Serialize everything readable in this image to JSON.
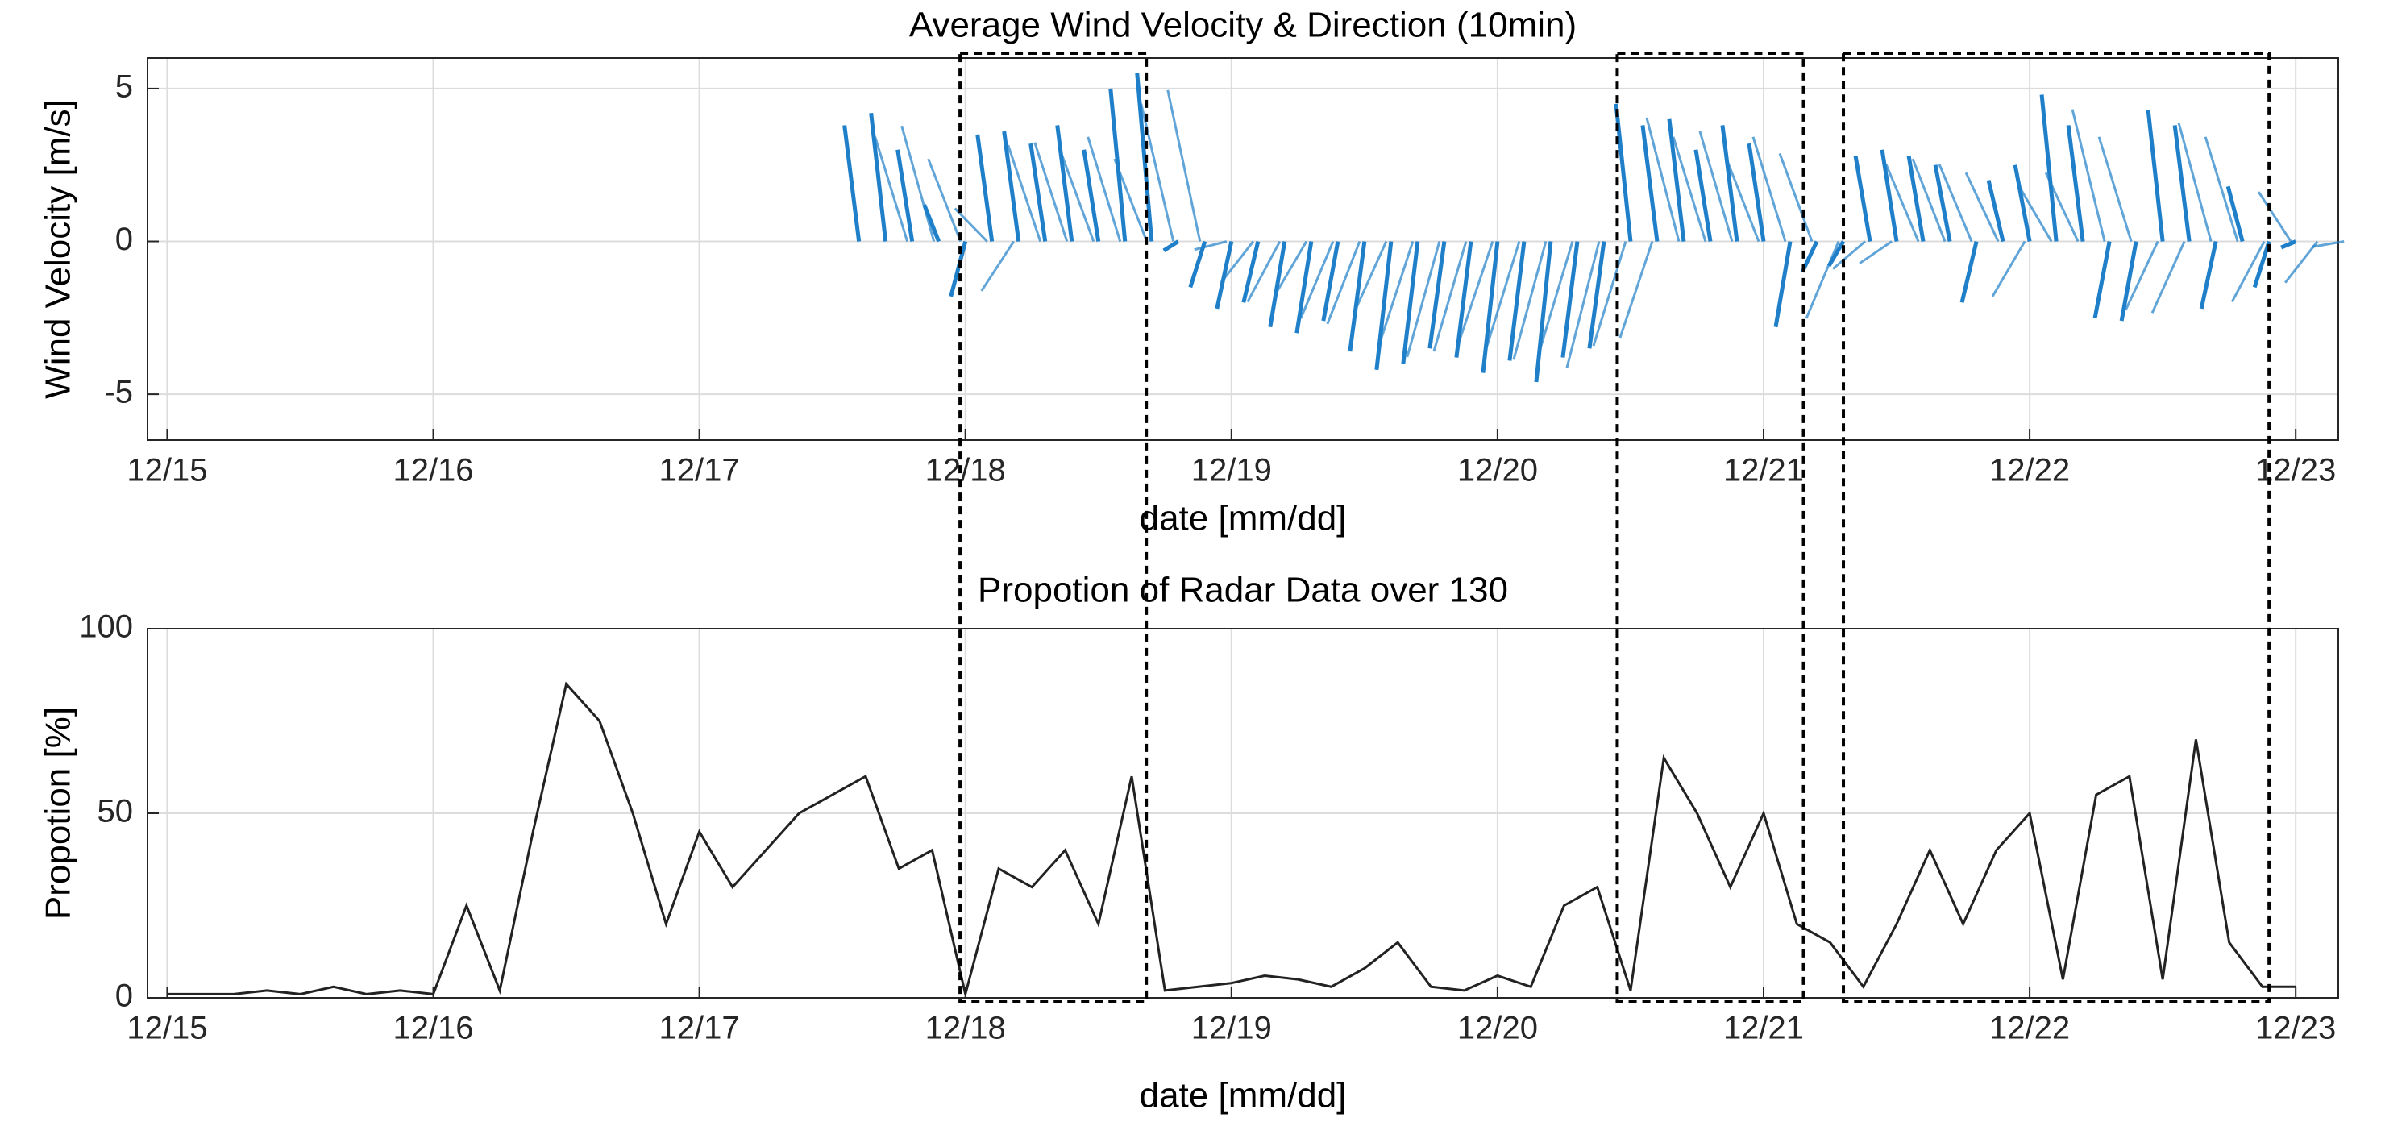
{
  "chart_data": [
    {
      "type": "quiver",
      "title": "Average Wind Velocity & Direction (10min)",
      "x_label": "date [mm/dd]",
      "y_label": "Wind Velocity  [m/s]",
      "x": [
        17.6,
        17.7,
        17.8,
        17.9,
        18.0,
        18.1,
        18.2,
        18.3,
        18.4,
        18.5,
        18.6,
        18.7,
        18.8,
        18.9,
        19.0,
        19.1,
        19.2,
        19.3,
        19.4,
        19.5,
        19.6,
        19.7,
        19.8,
        19.9,
        20.0,
        20.1,
        20.2,
        20.3,
        20.4,
        20.5,
        20.6,
        20.7,
        20.8,
        20.9,
        21.0,
        21.1,
        21.2,
        21.3,
        21.4,
        21.5,
        21.6,
        21.7,
        21.8,
        21.9,
        22.0,
        22.1,
        22.2,
        22.3,
        22.4,
        22.5,
        22.6,
        22.7,
        22.8,
        22.9,
        23.0
      ],
      "values": [
        3.8,
        4.2,
        3.0,
        1.2,
        -1.8,
        3.5,
        3.6,
        3.2,
        3.8,
        3.0,
        5.0,
        5.5,
        -0.3,
        -1.5,
        -2.2,
        -2.0,
        -2.8,
        -3.0,
        -2.6,
        -3.6,
        -4.2,
        -4.0,
        -3.5,
        -3.8,
        -4.3,
        -3.9,
        -4.6,
        -3.8,
        -3.5,
        4.5,
        3.8,
        4.0,
        3.0,
        3.8,
        3.2,
        -2.8,
        -1.0,
        -0.8,
        2.8,
        3.0,
        2.8,
        2.5,
        -2.0,
        2.0,
        2.5,
        4.8,
        3.8,
        -2.5,
        -2.6,
        4.3,
        3.8,
        -2.2,
        1.8,
        -1.5,
        -0.2
      ],
      "color": "#1f7fc8",
      "xlim": [
        14.926,
        23.16
      ],
      "ylim": [
        -6.5,
        6
      ],
      "xticks": [
        {
          "value": 15,
          "label": "12/15"
        },
        {
          "value": 16,
          "label": "12/16"
        },
        {
          "value": 17,
          "label": "12/17"
        },
        {
          "value": 18,
          "label": "12/18"
        },
        {
          "value": 19,
          "label": "12/19"
        },
        {
          "value": 20,
          "label": "12/20"
        },
        {
          "value": 21,
          "label": "12/21"
        },
        {
          "value": 22,
          "label": "12/22"
        },
        {
          "value": 23,
          "label": "12/23"
        }
      ],
      "yticks": [
        -5,
        0,
        5
      ],
      "grid": true
    },
    {
      "type": "line",
      "title": "Propotion of Radar Data over 130",
      "x_label": "date [mm/dd]",
      "y_label": "Propotion [%]",
      "x": [
        15.0,
        15.125,
        15.25,
        15.375,
        15.5,
        15.625,
        15.75,
        15.875,
        16.0,
        16.125,
        16.25,
        16.375,
        16.5,
        16.625,
        16.75,
        16.875,
        17.0,
        17.125,
        17.25,
        17.375,
        17.5,
        17.625,
        17.75,
        17.875,
        18.0,
        18.125,
        18.25,
        18.375,
        18.5,
        18.625,
        18.75,
        18.875,
        19.0,
        19.125,
        19.25,
        19.375,
        19.5,
        19.625,
        19.75,
        19.875,
        20.0,
        20.125,
        20.25,
        20.375,
        20.5,
        20.625,
        20.75,
        20.875,
        21.0,
        21.125,
        21.25,
        21.375,
        21.5,
        21.625,
        21.75,
        21.875,
        22.0,
        22.125,
        22.25,
        22.375,
        22.5,
        22.625,
        22.75,
        22.875,
        23.0
      ],
      "values": [
        1,
        1,
        1,
        2,
        1,
        3,
        1,
        2,
        1,
        25,
        2,
        45,
        85,
        75,
        50,
        20,
        45,
        30,
        40,
        50,
        55,
        60,
        35,
        40,
        1,
        35,
        30,
        40,
        20,
        60,
        2,
        3,
        4,
        6,
        5,
        3,
        8,
        15,
        3,
        2,
        6,
        3,
        25,
        30,
        2,
        65,
        50,
        30,
        50,
        20,
        15,
        3,
        20,
        40,
        20,
        40,
        50,
        5,
        55,
        60,
        5,
        70,
        15,
        3,
        3
      ],
      "color": "#222222",
      "xlim": [
        14.926,
        23.16
      ],
      "ylim": [
        0,
        100
      ],
      "xticks": [
        {
          "value": 15,
          "label": "12/15"
        },
        {
          "value": 16,
          "label": "12/16"
        },
        {
          "value": 17,
          "label": "12/17"
        },
        {
          "value": 18,
          "label": "12/18"
        },
        {
          "value": 19,
          "label": "12/19"
        },
        {
          "value": 20,
          "label": "12/20"
        },
        {
          "value": 21,
          "label": "12/21"
        },
        {
          "value": 22,
          "label": "12/22"
        },
        {
          "value": 23,
          "label": "12/23"
        }
      ],
      "yticks": [
        0,
        50,
        100
      ],
      "grid": true
    }
  ],
  "highlights": [
    [
      17.98,
      18.68
    ],
    [
      20.45,
      21.15
    ],
    [
      21.3,
      22.9
    ]
  ]
}
